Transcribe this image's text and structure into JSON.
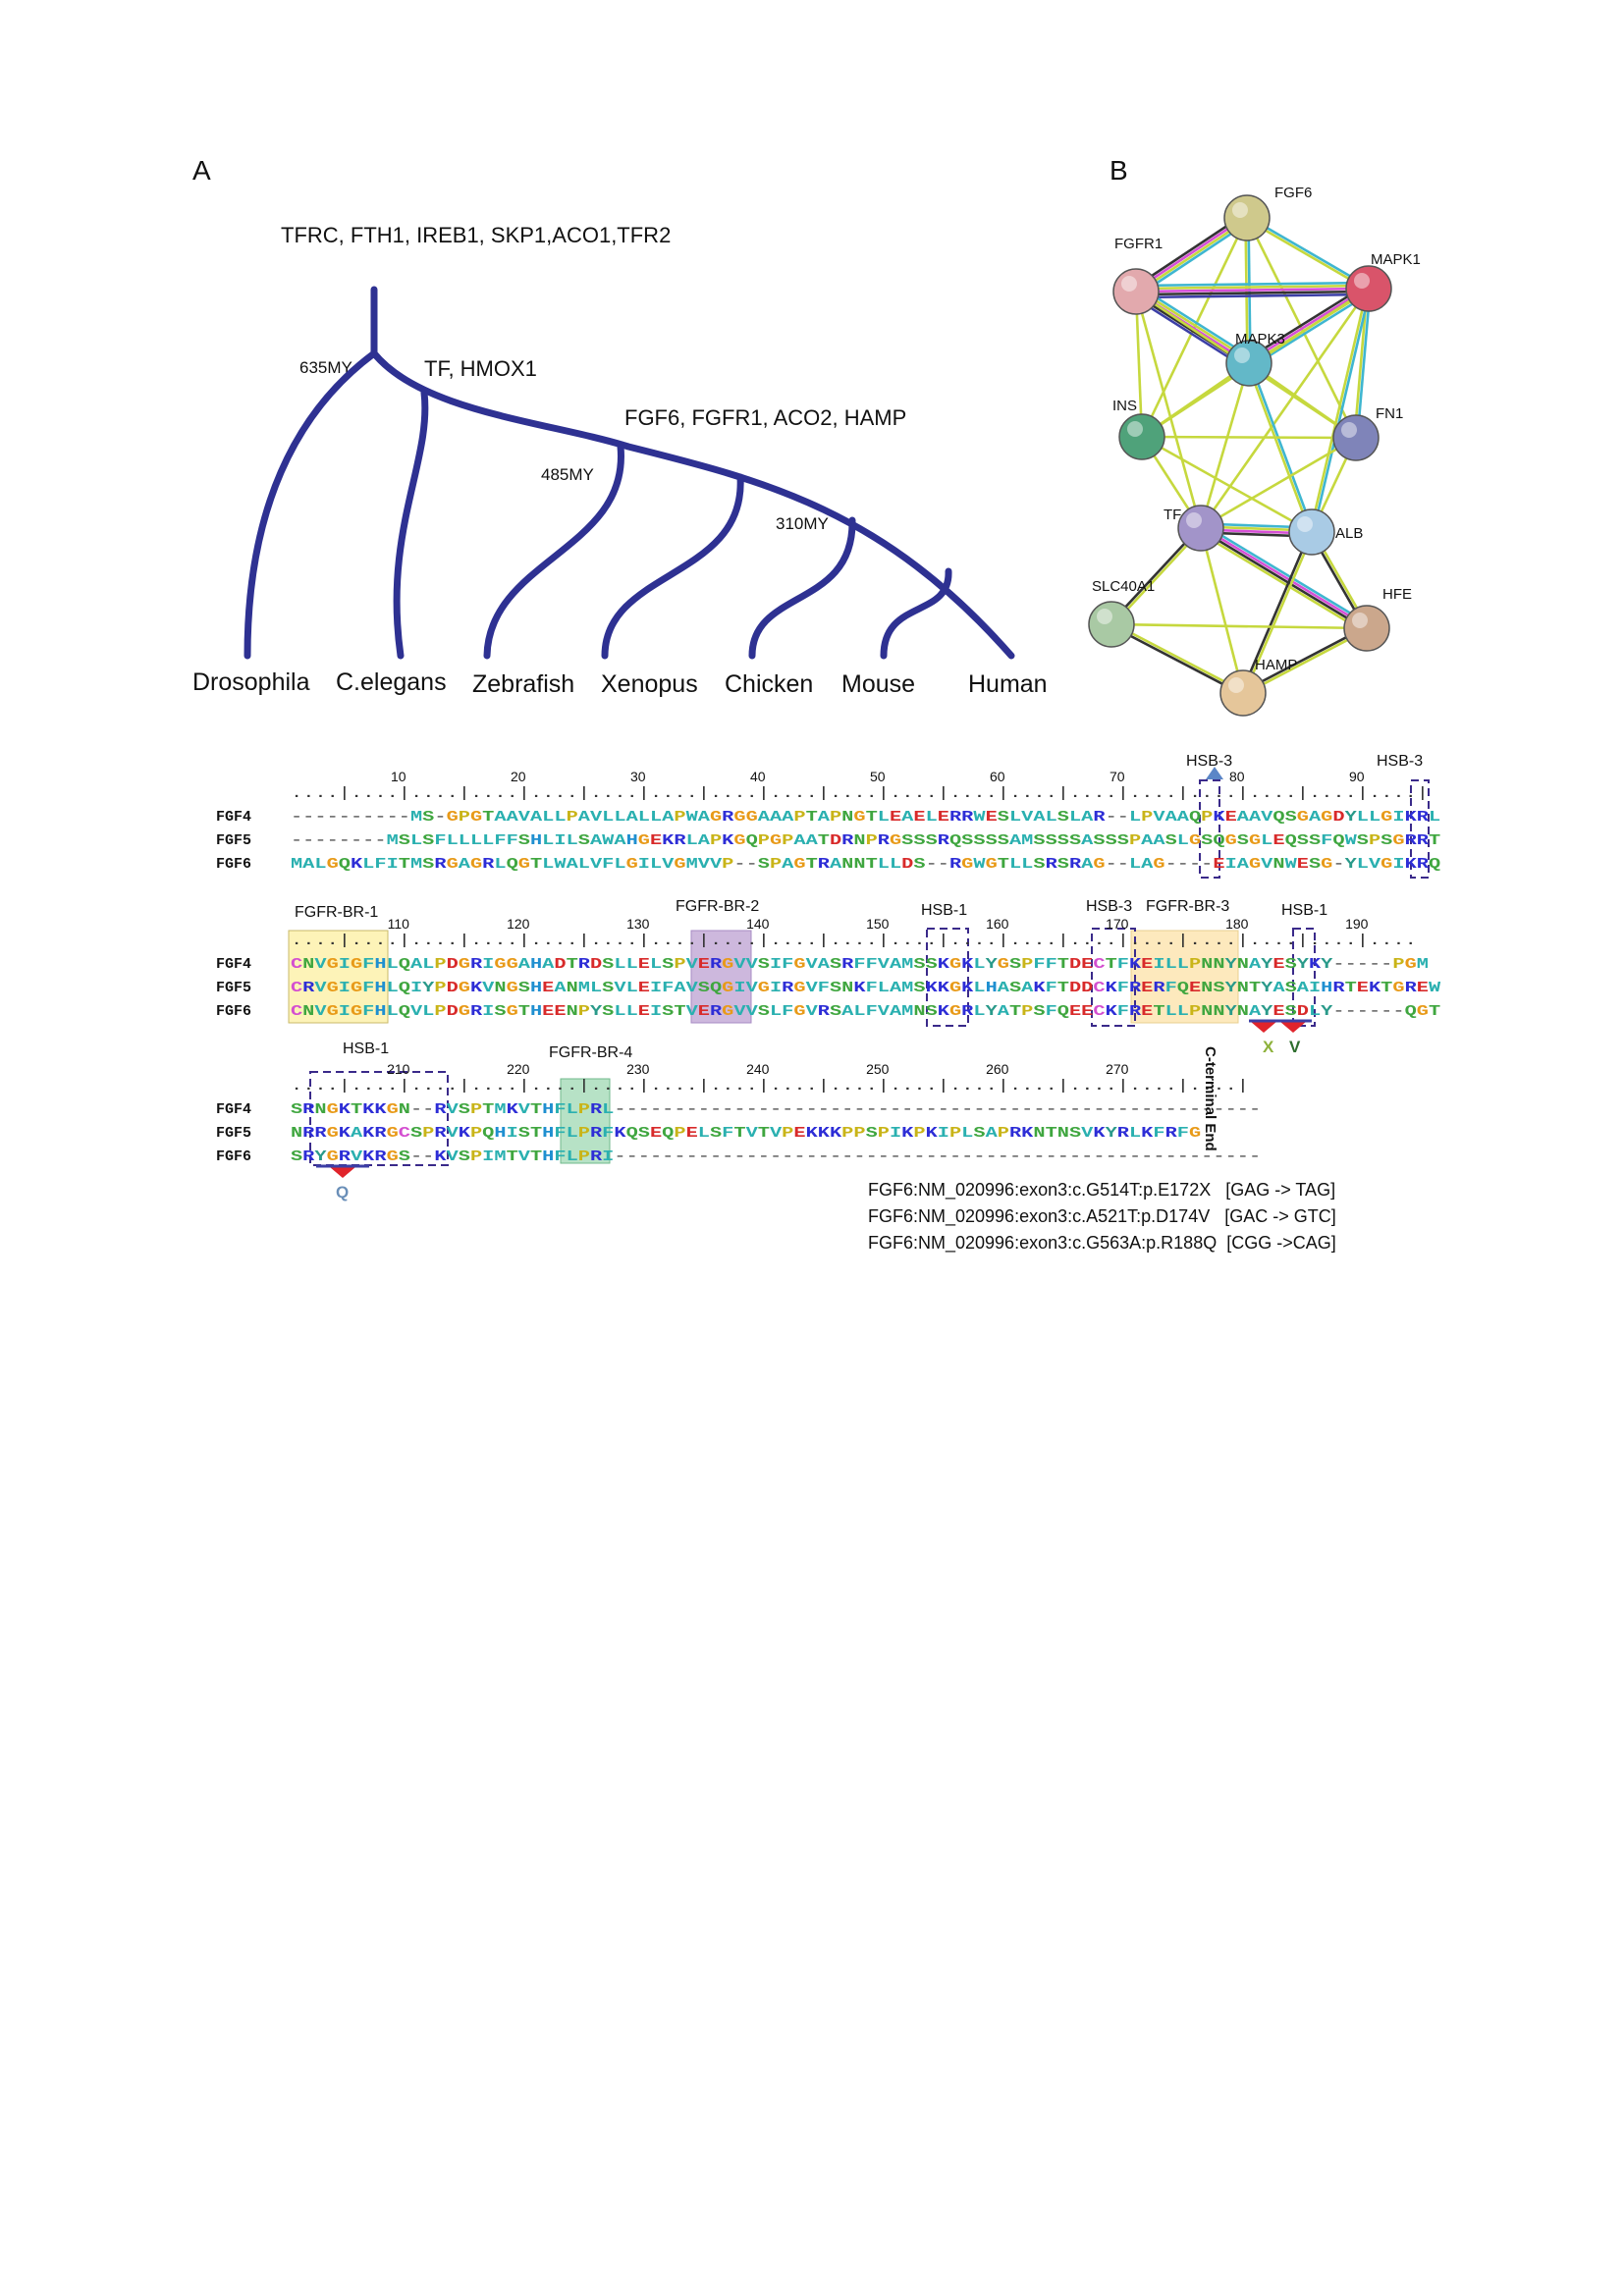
{
  "panel_a": {
    "label": "A",
    "root_genes": "TFRC, FTH1, IREB1, SKP1,ACO1,TFR2",
    "branch_genes_1": "TF, HMOX1",
    "branch_genes_2": "FGF6, FGFR1, ACO2, HAMP",
    "times": [
      "635MY",
      "485MY",
      "310MY"
    ],
    "species": [
      "Drosophila",
      "C.elegans",
      "Zebrafish",
      "Xenopus",
      "Chicken",
      "Mouse",
      "Human"
    ],
    "tree_color": "#2e3192"
  },
  "panel_b": {
    "label": "B",
    "nodes": [
      {
        "name": "FGF6",
        "color": "#cfc98c"
      },
      {
        "name": "FGFR1",
        "color": "#e2a9ad"
      },
      {
        "name": "MAPK1",
        "color": "#d9546a"
      },
      {
        "name": "MAPK3",
        "color": "#63b8c8"
      },
      {
        "name": "INS",
        "color": "#4fa27a"
      },
      {
        "name": "FN1",
        "color": "#7f84b9"
      },
      {
        "name": "TF",
        "color": "#a294c9"
      },
      {
        "name": "ALB",
        "color": "#a9cbe5"
      },
      {
        "name": "SLC40A1",
        "color": "#a9c9a4"
      },
      {
        "name": "HFE",
        "color": "#cba78c"
      },
      {
        "name": "HAMP",
        "color": "#e5c69a"
      }
    ],
    "edge_colors": [
      "#c6d83e",
      "#3fb6d0",
      "#d64fd6",
      "#333333",
      "#3c3fa6"
    ]
  },
  "alignment": {
    "seq_names": [
      "FGF4",
      "FGF5",
      "FGF6"
    ],
    "blocks": [
      {
        "positions": [
          "10",
          "20",
          "30",
          "40",
          "50",
          "60",
          "70",
          "80",
          "90"
        ],
        "ruler": "....|....|....|....|....|....|....|....|....|....|....|....|....|....|....|....|....|....|....|",
        "rows": [
          "----------MS-GPGTAAVALLPAVLLALLAPWAGRGGAAAPTAPNGTLEAELERRWESLVALSLAR--LPVAAQPKEAAVQSGAGDYLLGIKRL",
          "--------MSLSFLLLLFFSHLILSAWAHGEKRLAPKGQPGPAATDRNPRGSSSRQSSSSAMSSSSASSSPAASLGSQGSGLEQSSFQWSPSGRRT",
          "MALGQKLFITMSRGAGRLQGTLWALVFLGILVGMVVP--SPAGTRANNTLLDS--RGWGTLLSRSRAG--LAG----EIAGVNWESG-YLVGIKRQ"
        ]
      },
      {
        "positions": [
          "110",
          "120",
          "130",
          "140",
          "150",
          "160",
          "170",
          "180",
          "190"
        ],
        "ruler": "....|....|....|....|....|....|....|....|....|....|....|....|....|....|....|....|....|....|....",
        "rows": [
          "CNVGIGFHLQALPDGRIGGAHADTRDSLLELSPVERGVVSIFGVASRFFVAMSSKGKLYGSPFFTDECTFKEILLPNNYNAYESYKY-----PGM",
          "CRVGIGFHLQIYPDGKVNGSHEANMLSVLEIFAVSQGIVGIRGVFSNKFLAMSKKGKLHASAKFTDDCKFRERFQENSYNTYASAIHRTEKTGREW",
          "CNVGIGFHLQVLPDGRISGTHEENPYSLLEISTVERGVVSLFGVRSALFVAMNSKGRLYATPSFQEECKFRETLLPNNYNAYESDLY------QGT"
        ]
      },
      {
        "positions": [
          "210",
          "220",
          "230",
          "240",
          "250",
          "260",
          "270"
        ],
        "ruler": "....|....|....|....|....|....|....|....|....|....|....|....|....|....|....|....|",
        "rows": [
          "SRNGKTKKGN--RVSPTMKVTHFLPRL------------------------------------------------------",
          "NRRGKAKRGCSPRVKPQHISTHFLPRFKQSEQPELSFTVTVPEKKKPPSPIKPKIPLSAPRKNTNSVKYRLKFRFG",
          "SRYGRVKRGS--KVSPIMTVTHFLPRI------------------------------------------------------"
        ]
      }
    ],
    "region_labels": [
      "HSB-3",
      "HSB-3",
      "FGFR-BR-1",
      "FGFR-BR-2",
      "HSB-1",
      "HSB-3",
      "FGFR-BR-3",
      "HSB-1",
      "HSB-1",
      "FGFR-BR-4"
    ],
    "mutation_letters": [
      "X",
      "V",
      "Q"
    ],
    "c_terminal_label": "C-terminal End",
    "region_colors": {
      "br1": "#fdf3b8",
      "br2": "#c7b1d8",
      "br3": "#fde7b8",
      "br4": "#b3e0c2",
      "box": "#3a2a8a"
    }
  },
  "notes": [
    "FGF6:NM_020996:exon3:c.G514T:p.E172X   [GAG -> TAG]",
    "FGF6:NM_020996:exon3:c.A521T:p.D174V   [GAC -> GTC]",
    "FGF6:NM_020996:exon3:c.G563A:p.R188Q  [CGG ->CAG]"
  ]
}
